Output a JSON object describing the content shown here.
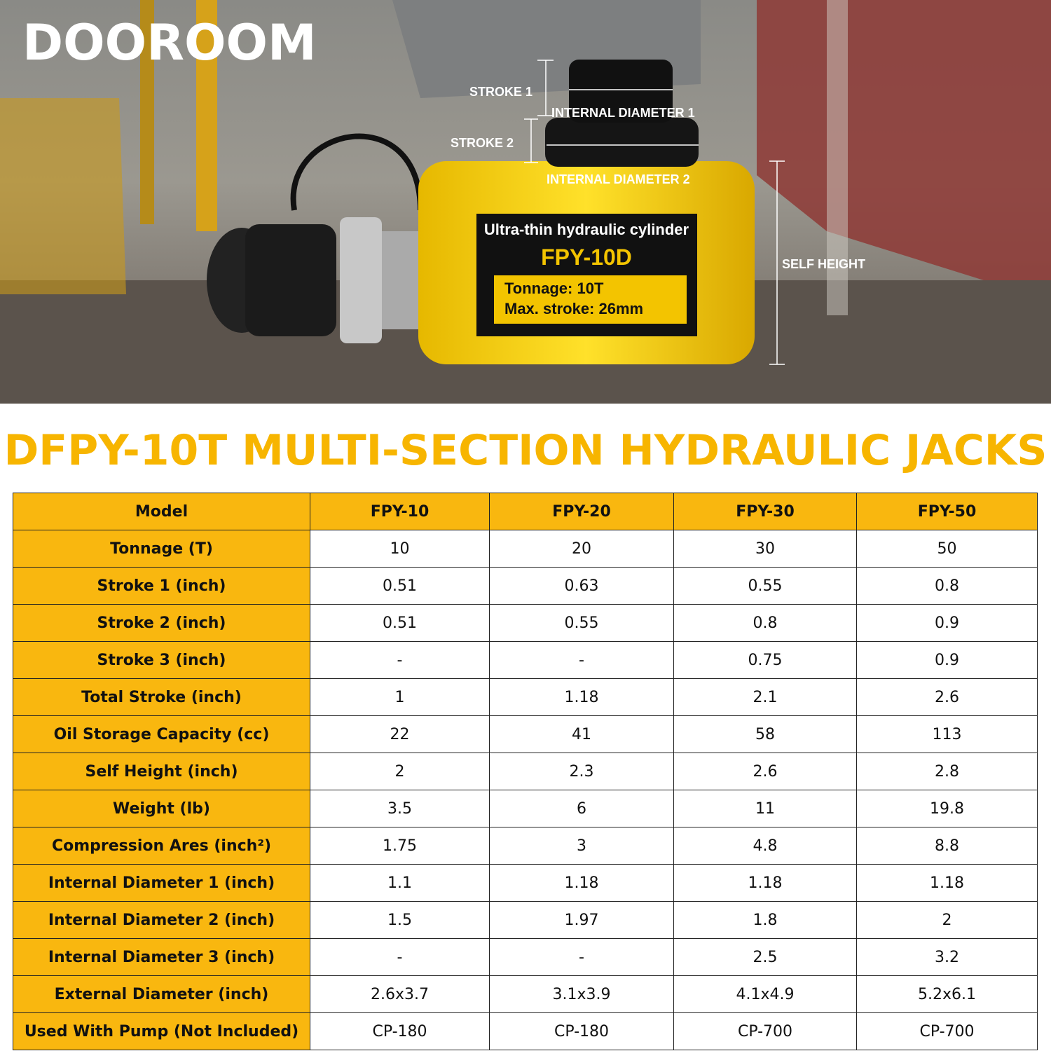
{
  "logo": "DOOROOM",
  "photo": {
    "labels": {
      "stroke_1": "STROKE 1",
      "internal_diameter_1": "INTERNAL DIAMETER 1",
      "stroke_2": "STROKE 2",
      "internal_diameter_2": "INTERNAL DIAMETER 2",
      "self_height": "SELF HEIGHT"
    },
    "plate": {
      "subtitle": "Ultra-thin hydraulic cylinder",
      "model": "FPY-10D",
      "tonnage": "Tonnage: 10T",
      "stroke": "Max. stroke: 26mm"
    }
  },
  "title": "DFPY-10T MULTI-SECTION HYDRAULIC JACKS",
  "table": {
    "header": [
      "Model",
      "FPY-10",
      "FPY-20",
      "FPY-30",
      "FPY-50"
    ],
    "rows": [
      [
        "Tonnage (T)",
        "10",
        "20",
        "30",
        "50"
      ],
      [
        "Stroke 1 (inch)",
        "0.51",
        "0.63",
        "0.55",
        "0.8"
      ],
      [
        "Stroke 2 (inch)",
        "0.51",
        "0.55",
        "0.8",
        "0.9"
      ],
      [
        "Stroke 3 (inch)",
        "-",
        "-",
        "0.75",
        "0.9"
      ],
      [
        "Total Stroke (inch)",
        "1",
        "1.18",
        "2.1",
        "2.6"
      ],
      [
        "Oil Storage Capacity (cc)",
        "22",
        "41",
        "58",
        "113"
      ],
      [
        "Self Height (inch)",
        "2",
        "2.3",
        "2.6",
        "2.8"
      ],
      [
        "Weight (lb)",
        "3.5",
        "6",
        "11",
        "19.8"
      ],
      [
        "Compression Ares (inch²)",
        "1.75",
        "3",
        "4.8",
        "8.8"
      ],
      [
        "Internal Diameter 1 (inch)",
        "1.1",
        "1.18",
        "1.18",
        "1.18"
      ],
      [
        "Internal Diameter 2 (inch)",
        "1.5",
        "1.97",
        "1.8",
        "2"
      ],
      [
        "Internal Diameter 3 (inch)",
        "-",
        "-",
        "2.5",
        "3.2"
      ],
      [
        "External Diameter (inch)",
        "2.6x3.7",
        "3.1x3.9",
        "4.1x4.9",
        "5.2x6.1"
      ],
      [
        "Used With Pump (Not Included)",
        "CP-180",
        "CP-180",
        "CP-700",
        "CP-700"
      ]
    ]
  }
}
